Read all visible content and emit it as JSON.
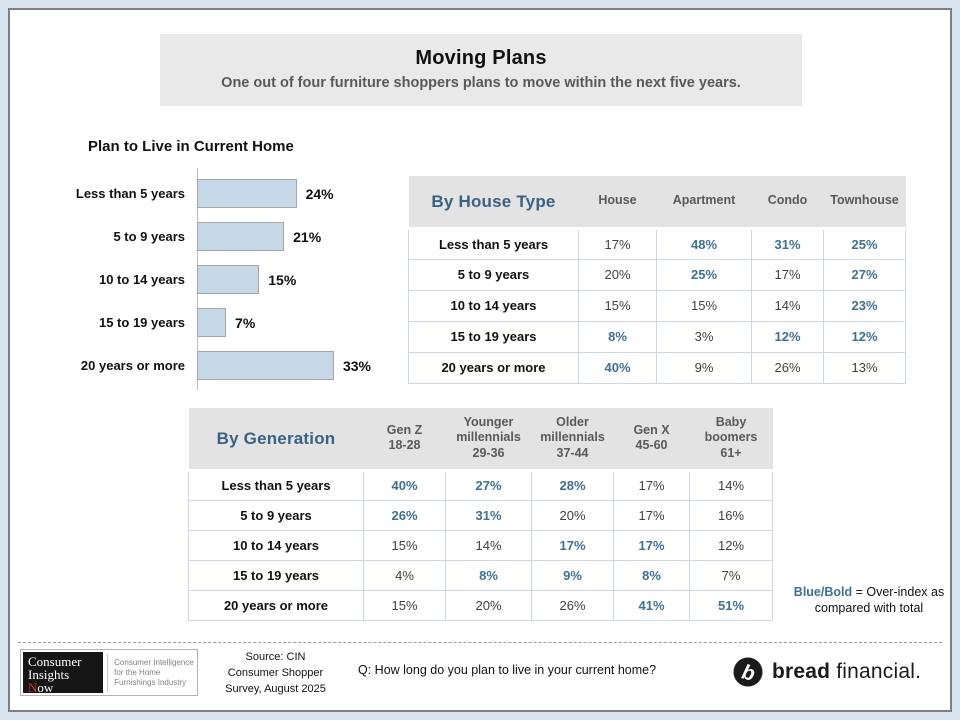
{
  "frame": {
    "title": "Moving Plans",
    "subtitle": "One out of four furniture shoppers plans to move within the next five years."
  },
  "chart_data": [
    {
      "type": "bar",
      "orientation": "horizontal",
      "title": "Plan to Live in Current Home",
      "categories": [
        "Less than 5 years",
        "5 to 9 years",
        "10 to 14 years",
        "15 to 19 years",
        "20 years or more"
      ],
      "values": [
        24,
        21,
        15,
        7,
        33
      ],
      "unit": "%",
      "data_labels": [
        "24%",
        "21%",
        "15%",
        "7%",
        "33%"
      ],
      "xlim": [
        0,
        35
      ],
      "grid": false,
      "bar_color": "#c6d8e8"
    },
    {
      "type": "table",
      "title": "By House Type",
      "columns": [
        "House",
        "Apartment",
        "Condo",
        "Townhouse"
      ],
      "rows": [
        {
          "label": "Less than 5 years",
          "values": [
            "17%",
            "48%",
            "31%",
            "25%"
          ],
          "overindex": [
            false,
            true,
            true,
            true
          ]
        },
        {
          "label": "5 to 9 years",
          "values": [
            "20%",
            "25%",
            "17%",
            "27%"
          ],
          "overindex": [
            false,
            true,
            false,
            true
          ]
        },
        {
          "label": "10 to 14 years",
          "values": [
            "15%",
            "15%",
            "14%",
            "23%"
          ],
          "overindex": [
            false,
            false,
            false,
            true
          ]
        },
        {
          "label": "15 to 19 years",
          "values": [
            "8%",
            "3%",
            "12%",
            "12%"
          ],
          "overindex": [
            true,
            false,
            true,
            true
          ]
        },
        {
          "label": "20 years or more",
          "values": [
            "40%",
            "9%",
            "26%",
            "13%"
          ],
          "overindex": [
            true,
            false,
            false,
            false
          ]
        }
      ]
    },
    {
      "type": "table",
      "title": "By Generation",
      "columns": [
        "Gen Z\n18-28",
        "Younger\nmillennials\n29-36",
        "Older\nmillennials\n37-44",
        "Gen X\n45-60",
        "Baby\nboomers\n61+"
      ],
      "rows": [
        {
          "label": "Less than 5 years",
          "values": [
            "40%",
            "27%",
            "28%",
            "17%",
            "14%"
          ],
          "overindex": [
            true,
            true,
            true,
            false,
            false
          ]
        },
        {
          "label": "5 to 9 years",
          "values": [
            "26%",
            "31%",
            "20%",
            "17%",
            "16%"
          ],
          "overindex": [
            true,
            true,
            false,
            false,
            false
          ]
        },
        {
          "label": "10 to 14 years",
          "values": [
            "15%",
            "14%",
            "17%",
            "17%",
            "12%"
          ],
          "overindex": [
            false,
            false,
            true,
            true,
            false
          ]
        },
        {
          "label": "15 to 19 years",
          "values": [
            "4%",
            "8%",
            "9%",
            "8%",
            "7%"
          ],
          "overindex": [
            false,
            true,
            true,
            true,
            false
          ]
        },
        {
          "label": "20 years or more",
          "values": [
            "15%",
            "20%",
            "26%",
            "41%",
            "51%"
          ],
          "overindex": [
            false,
            false,
            false,
            true,
            true
          ]
        }
      ]
    }
  ],
  "note": {
    "highlight": "Blue/Bold",
    "rest": " = Over-index as compared with total"
  },
  "footer": {
    "cin_logo": {
      "word1": "Consumer",
      "word2": "Insights",
      "word3_red": "N",
      "word3_rest": "ow",
      "tagline": "Consumer Intelligence for the Home Furnishings Industry"
    },
    "source": "Source: CIN\nConsumer Shopper\nSurvey, August 2025",
    "question": "Q: How long do you plan to live in your current home?",
    "brand": {
      "bold": "bread",
      "light": " financial."
    }
  },
  "colors": {
    "outer_background": "#d7e3ee",
    "page_border": "#7f7f7f",
    "banner_background": "#e9e9e9",
    "subtitle_gray": "#595959",
    "bar_fill": "#c6d8e8",
    "bar_border": "#a6a6a6",
    "table_header_background": "#e3e3e3",
    "table_title_blue": "#3a6083",
    "overindex_blue": "#3f7092",
    "cin_logo_red": "#c0392b"
  }
}
